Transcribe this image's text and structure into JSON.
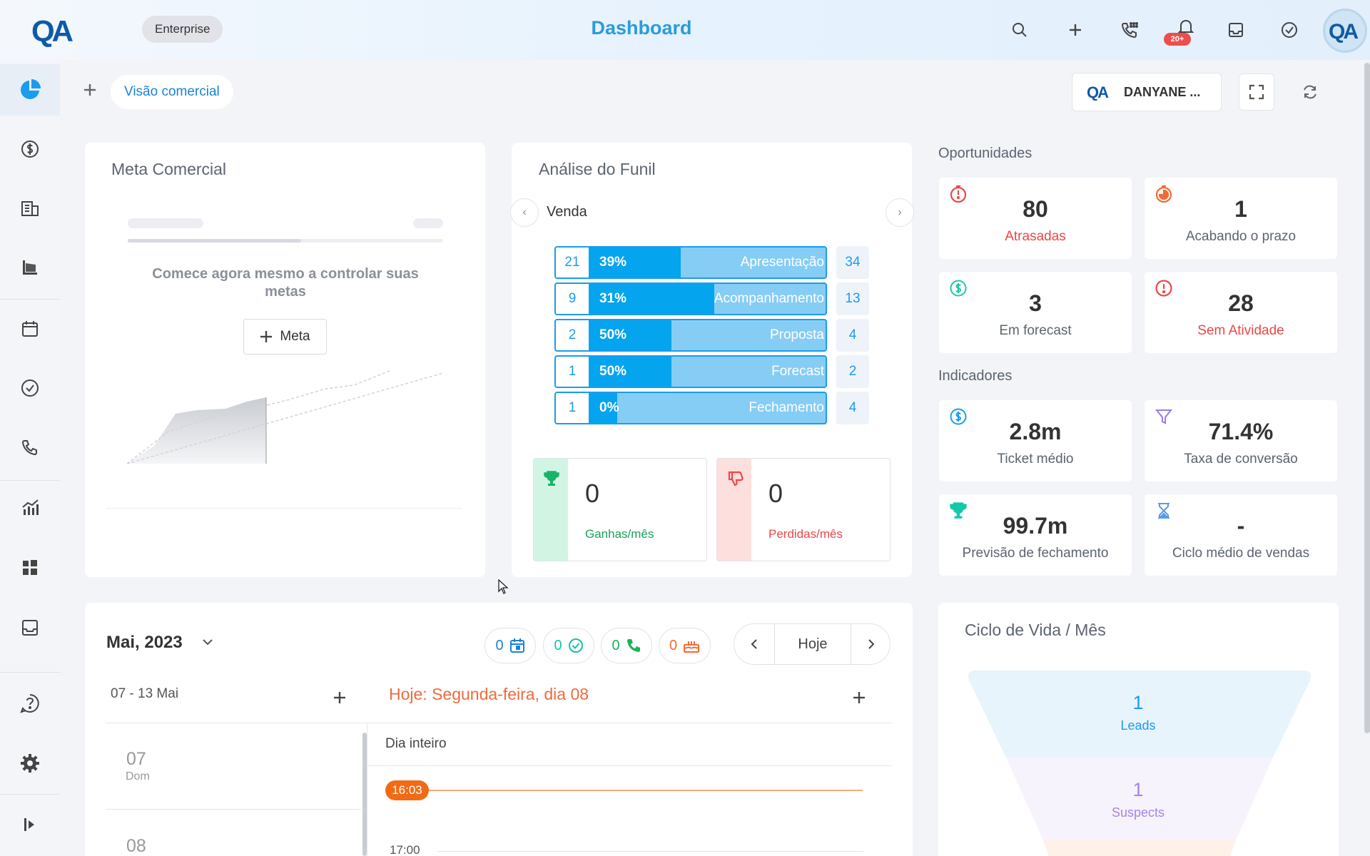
{
  "app": {
    "logo_text": "QA",
    "plan_badge": "Enterprise",
    "page_title": "Dashboard",
    "notifications_badge": "20+"
  },
  "header_icons": [
    "search-icon",
    "plus-icon",
    "phone-dialpad-icon",
    "bell-icon",
    "inbox-icon",
    "check-circle-icon"
  ],
  "sidebar": {
    "items": [
      {
        "icon": "pie-chart-icon",
        "active": true
      },
      {
        "icon": "dollar-icon",
        "active": false
      },
      {
        "icon": "building-icon",
        "active": false
      },
      {
        "icon": "funnel-chart-icon",
        "active": false
      },
      {
        "icon": "calendar-icon",
        "active": false
      },
      {
        "icon": "check-circle-icon",
        "active": false
      },
      {
        "icon": "phone-icon",
        "active": false
      },
      {
        "icon": "trend-chart-icon",
        "active": false
      },
      {
        "icon": "widgets-icon",
        "active": false
      },
      {
        "icon": "inbox-icon",
        "active": false
      },
      {
        "icon": "help-icon",
        "active": false
      },
      {
        "icon": "settings-icon",
        "active": false
      },
      {
        "icon": "expand-sidebar-icon",
        "active": false
      }
    ]
  },
  "tabs": {
    "active_label": "Visão comercial"
  },
  "user_selector": {
    "label": "DANYANE ..."
  },
  "meta_comercial": {
    "title": "Meta Comercial",
    "empty_text": "Comece agora mesmo a controlar suas metas",
    "button_label": "Meta"
  },
  "funil": {
    "title": "Análise do Funil",
    "pipeline": "Venda",
    "stages": [
      {
        "count": "21",
        "percent": "39%",
        "fill": 0.39,
        "name": "Apresentação",
        "total": "34"
      },
      {
        "count": "9",
        "percent": "31%",
        "fill": 0.53,
        "name": "Acompanhamento",
        "total": "13"
      },
      {
        "count": "2",
        "percent": "50%",
        "fill": 0.35,
        "name": "Proposta",
        "total": "4"
      },
      {
        "count": "1",
        "percent": "50%",
        "fill": 0.35,
        "name": "Forecast",
        "total": "2"
      },
      {
        "count": "1",
        "percent": "0%",
        "fill": 0.12,
        "name": "Fechamento",
        "total": "4"
      }
    ],
    "ganhas": {
      "value": "0",
      "label": "Ganhas/mês"
    },
    "perdidas": {
      "value": "0",
      "label": "Perdidas/mês"
    }
  },
  "oportunidades": {
    "title": "Oportunidades",
    "cards": [
      {
        "value": "80",
        "label": "Atrasadas",
        "red": true,
        "icon": "timer-alert-icon",
        "icon_color": "#ef4646"
      },
      {
        "value": "1",
        "label": "Acabando o prazo",
        "red": false,
        "icon": "timer-running-icon",
        "icon_color": "#f26a35"
      },
      {
        "value": "3",
        "label": "Em forecast",
        "red": false,
        "icon": "dollar-circle-icon",
        "icon_color": "#1ec8a5"
      },
      {
        "value": "28",
        "label": "Sem Atividade",
        "red": true,
        "icon": "alert-circle-icon",
        "icon_color": "#ef4646"
      }
    ]
  },
  "indicadores": {
    "title": "Indicadores",
    "cards": [
      {
        "value": "2.8m",
        "label": "Ticket médio",
        "icon": "dollar-circle-icon",
        "icon_color": "#1a9cee"
      },
      {
        "value": "71.4%",
        "label": "Taxa de conversão",
        "icon": "funnel-icon",
        "icon_color": "#9a7be6"
      },
      {
        "value": "99.7m",
        "label": "Previsão de fechamento",
        "icon": "trophy-icon",
        "icon_color": "#13c8a8"
      },
      {
        "value": "-",
        "label": "Ciclo médio de vendas",
        "icon": "hourglass-icon",
        "icon_color": "#5a9be6"
      }
    ]
  },
  "calendar": {
    "month": "Mai, 2023",
    "counters": [
      {
        "value": "0",
        "icon": "calendar-icon",
        "color": "#1a82d8"
      },
      {
        "value": "0",
        "icon": "check-circle-icon",
        "color": "#17c2a3"
      },
      {
        "value": "0",
        "icon": "phone-icon",
        "color": "#19b35a"
      },
      {
        "value": "0",
        "icon": "cake-icon",
        "color": "#f26a35"
      }
    ],
    "today_button": "Hoje",
    "week_range": "07 - 13 Mai",
    "today_title": "Hoje: Segunda-feira, dia 08",
    "all_day": "Dia inteiro",
    "current_time": "16:03",
    "next_hour": "17:00",
    "days": [
      {
        "num": "07",
        "name": "Dom"
      },
      {
        "num": "08",
        "name": ""
      }
    ]
  },
  "ciclo_vida": {
    "title": "Ciclo de Vida / Mês",
    "stages": [
      {
        "value": "1",
        "label": "Leads",
        "color": "#1a9cee"
      },
      {
        "value": "1",
        "label": "Suspects",
        "color": "#a883e8"
      }
    ]
  }
}
